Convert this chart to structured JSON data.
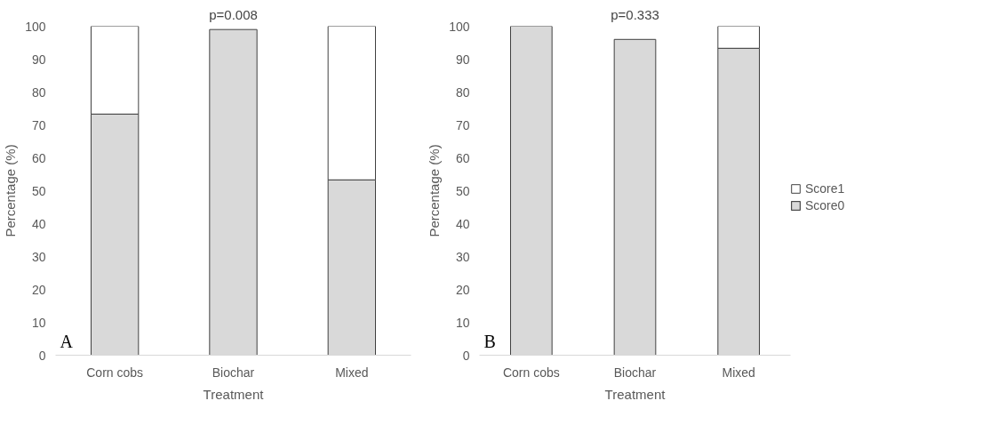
{
  "chart_data": [
    {
      "type": "bar",
      "title": "p=0.008",
      "xlabel": "Treatment",
      "ylabel": "Percentage (%)",
      "categories": [
        "Corn cobs",
        "Biochar",
        "Mixed"
      ],
      "stacked": true,
      "ylim": [
        0,
        100
      ],
      "yticks": [
        0,
        10,
        20,
        30,
        40,
        50,
        60,
        70,
        80,
        90,
        100
      ],
      "grid": false,
      "legend": false,
      "annotations": [
        "A"
      ],
      "series": [
        {
          "color": "#d9d9d9",
          "values": [
            73.3,
            99,
            53.3
          ]
        },
        {
          "color": "#ffffff",
          "values": [
            26.7,
            null,
            46.7
          ]
        }
      ]
    },
    {
      "type": "bar",
      "title": "p=0.333",
      "xlabel": "Treatment",
      "ylabel": "Percentage (%)",
      "categories": [
        "Corn cobs",
        "Biochar",
        "Mixed"
      ],
      "stacked": true,
      "ylim": [
        0,
        100
      ],
      "yticks": [
        0,
        10,
        20,
        30,
        40,
        50,
        60,
        70,
        80,
        90,
        100
      ],
      "grid": false,
      "legend": "right",
      "annotations": [
        "B"
      ],
      "series": [
        {
          "name": "Score0",
          "color": "#d9d9d9",
          "values": [
            100,
            96,
            93.3
          ]
        },
        {
          "name": "Score1",
          "color": "#ffffff",
          "values": [
            null,
            null,
            6.7
          ]
        }
      ]
    }
  ]
}
